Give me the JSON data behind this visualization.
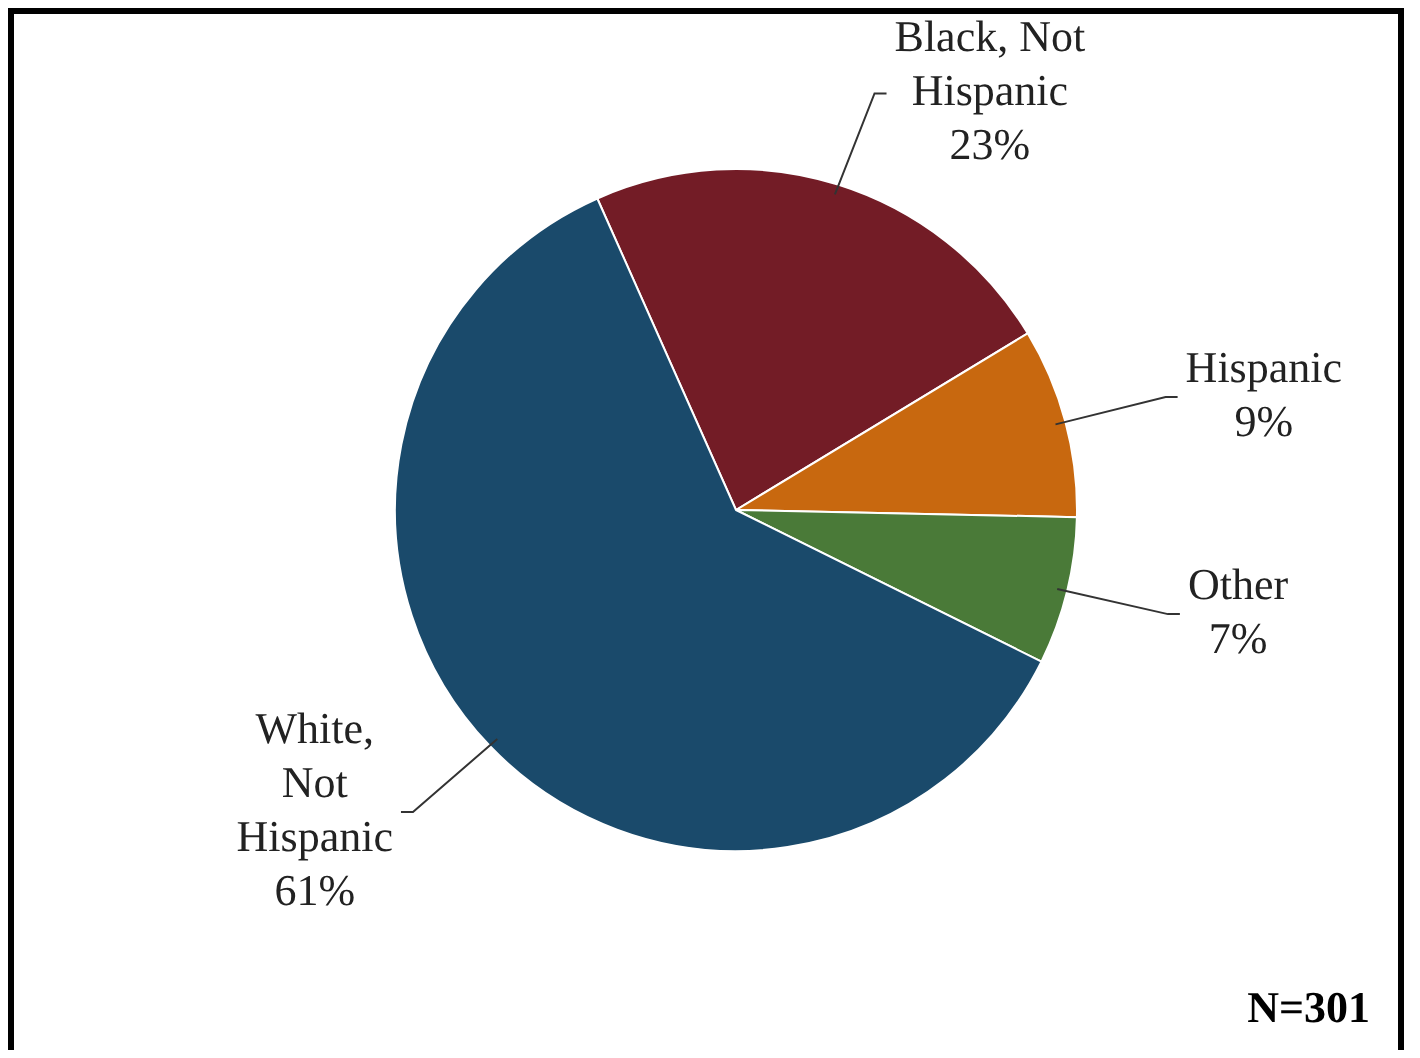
{
  "chart_data": {
    "type": "pie",
    "categories": [
      "Black, Not Hispanic",
      "Hispanic",
      "Other",
      "White, Not Hispanic"
    ],
    "values": [
      23,
      9,
      7,
      61
    ],
    "colors": [
      "#731c26",
      "#c8680f",
      "#4a7a38",
      "#1a4a6b"
    ],
    "value_labels": [
      "23%",
      "9%",
      "7%",
      "61%"
    ],
    "annotations": [
      "N=301"
    ],
    "legend": false
  }
}
